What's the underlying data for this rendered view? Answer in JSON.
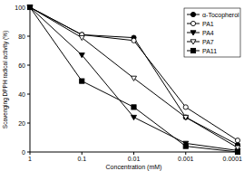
{
  "chart_data": {
    "type": "line",
    "x_label": "Concentration (mM)",
    "y_label": "Scavenging DPPH radical activity (%)",
    "categories": [
      "1",
      "0.1",
      "0.01",
      "0.001",
      "0.0001"
    ],
    "series": [
      {
        "name": "α-Tocopherol",
        "color": "#000000",
        "marker": "circle",
        "values": [
          100,
          81,
          79,
          24,
          5
        ]
      },
      {
        "name": "PA1",
        "color": "#000000",
        "marker": "open-circle",
        "values": [
          100,
          81,
          77,
          31,
          8
        ]
      },
      {
        "name": "PA4",
        "color": "#000000",
        "marker": "triangle",
        "values": [
          100,
          67,
          24,
          6,
          1
        ]
      },
      {
        "name": "PA7",
        "color": "#000000",
        "marker": "open-triangle",
        "values": [
          100,
          79,
          51,
          24,
          3
        ]
      },
      {
        "name": "PA11",
        "color": "#000000",
        "marker": "square",
        "values": [
          100,
          49,
          31,
          4,
          0
        ]
      }
    ],
    "ylim": [
      0,
      100
    ],
    "yticks": [
      0,
      20,
      40,
      60,
      80,
      100
    ],
    "legend": "top-right"
  }
}
